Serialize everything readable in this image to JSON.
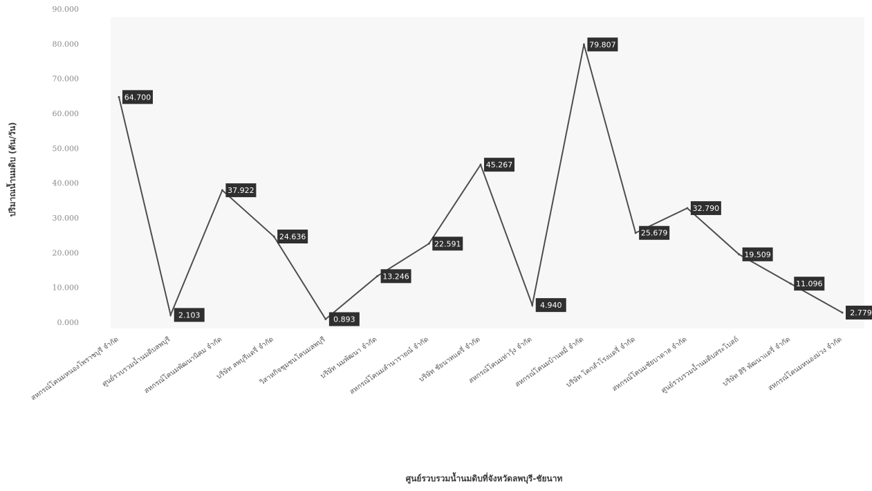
{
  "chart_data": {
    "type": "line",
    "xlabel": "ศูนย์รวบรวมน้ำนมดิบที่จังหวัดลพบุรี-ชัยนาท",
    "ylabel": "ปริมาณน้ำนมดิบ (ตัน/วัน)",
    "ylim": [
      0,
      90
    ],
    "yticks": [
      "0.000",
      "10.000",
      "20.000",
      "30.000",
      "40.000",
      "50.000",
      "60.000",
      "70.000",
      "80.000",
      "90.000"
    ],
    "grid": false,
    "legend": "none",
    "line_color": "#4d4d4d",
    "label_box_color": "#2f2f2f",
    "categories": [
      "สหกรณ์โคนมหนองโพราชบุรี จำกัด",
      "ศูนย์รวบรวมน้ำนมดิบลพบุรี",
      "สหกรณ์โคนมพัฒนานิคม จำกัด",
      "บริษัท ลพบุรีแดรี่ จำกัด",
      "วิสาหกิจชุมชนโคนมลพบุรี",
      "บริษัท นมพัฒนา จำกัด",
      "สหกรณ์โคนมลำนารายณ์ จำกัด",
      "บริษัท ชัยนาทแดรี่ จำกัด",
      "สหกรณ์โคนมท่าวุ้ง จำกัด",
      "สหกรณ์โคนมบ้านหมี่ จำกัด",
      "บริษัท โคกสำโรงแดรี่ จำกัด",
      "สหกรณ์โคนมชัยบาดาล จำกัด",
      "ศูนย์รวบรวมน้ำนมดิบสระโบสถ์",
      "บริษัท สิริ พัฒนาแดรี่ จำกัด",
      "สหกรณ์โคนมหนองม่วง จำกัด"
    ],
    "values": [
      64.7,
      2.103,
      37.922,
      24.636,
      0.893,
      13.246,
      22.591,
      45.267,
      4.94,
      79.807,
      25.679,
      32.79,
      19.509,
      11.096,
      2.779
    ],
    "data_labels": [
      "64.700",
      "2.103",
      "37.922",
      "24.636",
      "0.893",
      "13.246",
      "22.591",
      "45.267",
      "4.940",
      "79.807",
      "25.679",
      "32.790",
      "19.509",
      "11.096",
      "2.779"
    ]
  }
}
